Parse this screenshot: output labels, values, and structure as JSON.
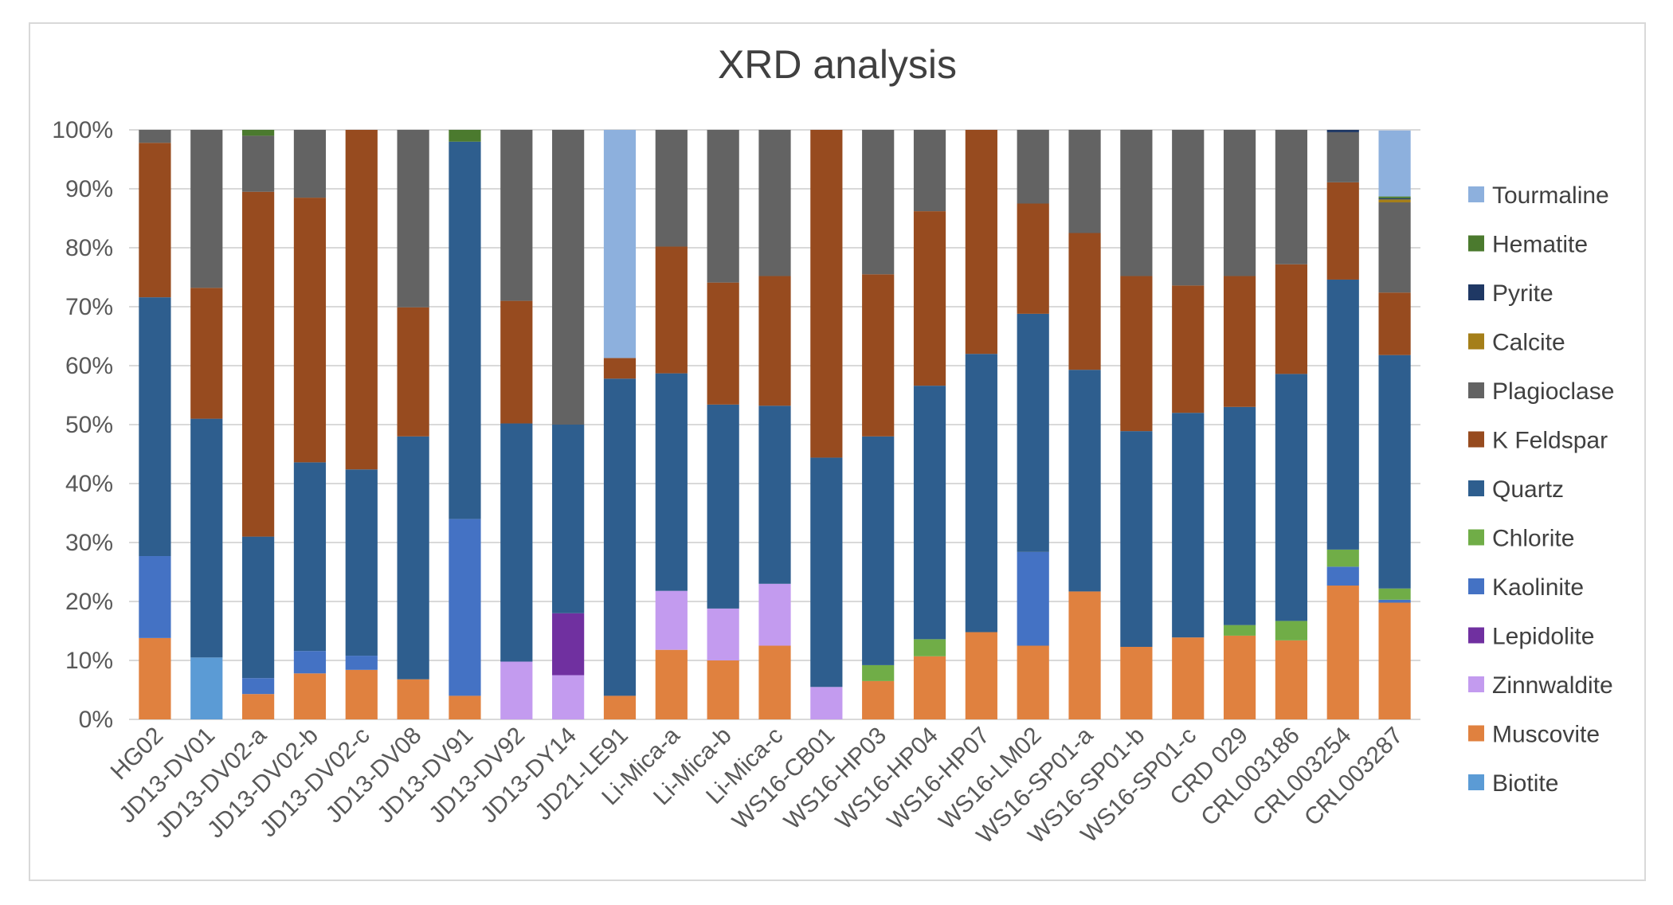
{
  "chart_data": {
    "type": "bar",
    "stacked": true,
    "percent_stacked": true,
    "title": "XRD analysis",
    "xlabel": "",
    "ylabel": "",
    "ylim": [
      0,
      100
    ],
    "y_ticks": [
      "0%",
      "10%",
      "20%",
      "30%",
      "40%",
      "50%",
      "60%",
      "70%",
      "80%",
      "90%",
      "100%"
    ],
    "grid": "horizontal",
    "legend_position": "right",
    "categories": [
      "HG02",
      "JD13-DV01",
      "JD13-DV02-a",
      "JD13-DV02-b",
      "JD13-DV02-c",
      "JD13-DV08",
      "JD13-DV91",
      "JD13-DV92",
      "JD13-DY14",
      "JD21-LE91",
      "Li-Mica-a",
      "Li-Mica-b",
      "Li-Mica-c",
      "WS16-CB01",
      "WS16-HP03",
      "WS16-HP04",
      "WS16-HP07",
      "WS16-LM02",
      "WS16-SP01-a",
      "WS16-SP01-b",
      "WS16-SP01-c",
      "CRD 029",
      "CRL003186",
      "CRL003254",
      "CRL003287"
    ],
    "series": [
      {
        "name": "Biotite",
        "color": "#5b9bd5",
        "values": [
          0,
          10.5,
          0,
          0,
          0,
          0,
          0,
          0,
          0,
          0,
          0,
          0,
          0,
          0,
          0,
          0,
          0,
          0,
          0,
          0,
          0,
          0,
          0,
          0,
          0
        ]
      },
      {
        "name": "Muscovite",
        "color": "#e0813f",
        "values": [
          13.8,
          0,
          4.3,
          7.8,
          8.4,
          6.8,
          4,
          0,
          0,
          4,
          11.8,
          10,
          12.5,
          0,
          6.5,
          10.7,
          14.8,
          12.5,
          21.7,
          12.3,
          13.9,
          14.2,
          13.4,
          22.7,
          19.8
        ]
      },
      {
        "name": "Zinnwaldite",
        "color": "#c39bef",
        "values": [
          0,
          0,
          0,
          0,
          0,
          0,
          0,
          9.8,
          7.5,
          0,
          10,
          8.8,
          10.5,
          5.5,
          0,
          0,
          0,
          0,
          0,
          0,
          0,
          0,
          0,
          0,
          0
        ]
      },
      {
        "name": "Lepidolite",
        "color": "#7030a0",
        "values": [
          0,
          0,
          0,
          0,
          0,
          0,
          0,
          0,
          10.5,
          0,
          0,
          0,
          0,
          0,
          0,
          0,
          0,
          0,
          0,
          0,
          0,
          0,
          0,
          0,
          0
        ]
      },
      {
        "name": "Kaolinite",
        "color": "#4472c4",
        "values": [
          13.9,
          0,
          2.7,
          3.8,
          2.4,
          0,
          30,
          0,
          0,
          0,
          0,
          0,
          0,
          0,
          0,
          0,
          0,
          15.9,
          0,
          0,
          0,
          0,
          0,
          3.2,
          0.5
        ]
      },
      {
        "name": "Chlorite",
        "color": "#70ad47",
        "values": [
          0,
          0,
          0,
          0,
          0,
          0,
          0,
          0,
          0,
          0,
          0,
          0,
          0,
          0,
          2.7,
          2.9,
          0,
          0,
          0,
          0,
          0,
          1.8,
          3.3,
          2.9,
          1.9
        ]
      },
      {
        "name": "Quartz",
        "color": "#2e5e8e",
        "values": [
          43.9,
          40.5,
          24,
          32,
          31.6,
          41.2,
          64,
          40.4,
          32,
          53.8,
          36.9,
          34.6,
          30.2,
          38.9,
          38.8,
          43,
          47.2,
          40.4,
          37.6,
          36.6,
          38.1,
          37,
          41.9,
          45.8,
          39.6
        ]
      },
      {
        "name": "K Feldspar",
        "color": "#974b1f",
        "values": [
          26.2,
          22.2,
          58.5,
          44.9,
          57.6,
          21.9,
          0,
          20.8,
          0,
          3.5,
          21.5,
          20.7,
          22,
          55.6,
          27.5,
          29.6,
          38,
          18.7,
          23.2,
          26.3,
          21.6,
          22.2,
          18.6,
          16.5,
          10.6
        ]
      },
      {
        "name": "Plagioclase",
        "color": "#636363",
        "values": [
          2.2,
          26.8,
          9.5,
          11.5,
          0,
          30.1,
          0,
          29,
          50,
          0,
          19.8,
          25.9,
          24.8,
          0,
          24.5,
          13.8,
          0,
          12.5,
          17.5,
          24.8,
          26.4,
          24.8,
          22.8,
          8.5,
          15.3
        ]
      },
      {
        "name": "Calcite",
        "color": "#a57f19",
        "values": [
          0,
          0,
          0,
          0,
          0,
          0,
          0,
          0,
          0,
          0,
          0,
          0,
          0,
          0,
          0,
          0,
          0,
          0,
          0,
          0,
          0,
          0,
          0,
          0,
          0.5
        ]
      },
      {
        "name": "Pyrite",
        "color": "#1f3864",
        "values": [
          0,
          0,
          0,
          0,
          0,
          0,
          0,
          0,
          0,
          0,
          0,
          0,
          0,
          0,
          0,
          0,
          0,
          0,
          0,
          0,
          0,
          0,
          0,
          0.4,
          0.2
        ]
      },
      {
        "name": "Hematite",
        "color": "#4b7a2e",
        "values": [
          0,
          0,
          1,
          0,
          0,
          0,
          2,
          0,
          0,
          0,
          0,
          0,
          0,
          0,
          0,
          0,
          0,
          0,
          0,
          0,
          0,
          0,
          0,
          0,
          0.3
        ]
      },
      {
        "name": "Tourmaline",
        "color": "#8db0dd",
        "values": [
          0,
          0,
          0,
          0,
          0,
          0,
          0,
          0,
          0,
          38.7,
          0,
          0,
          0,
          0,
          0,
          0,
          0,
          0,
          0,
          0,
          0,
          0,
          0,
          0,
          11.2
        ]
      }
    ]
  }
}
